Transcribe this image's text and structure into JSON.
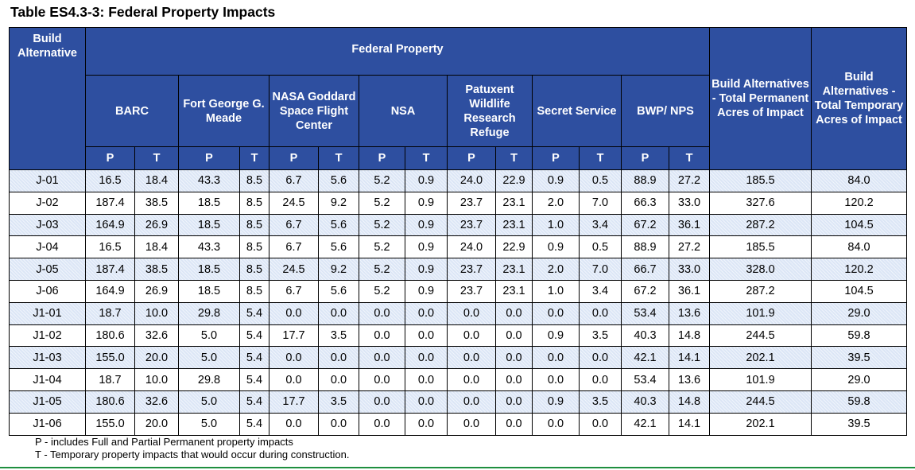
{
  "title": "Table ES4.3-3: Federal Property Impacts",
  "headers": {
    "build_alt": "Build Alternative",
    "federal_property": "Federal Property",
    "properties": [
      "BARC",
      "Fort George G. Meade",
      "NASA Goddard Space Flight Center",
      "NSA",
      "Patuxent Wildlife Research Refuge",
      "Secret Service",
      "BWP/ NPS"
    ],
    "total_perm": "Build Alternatives - Total Permanent Acres of Impact",
    "total_temp": "Build Alternatives - Total Temporary Acres of Impact",
    "p": "P",
    "t": "T"
  },
  "rows": [
    [
      "J-01",
      "16.5",
      "18.4",
      "43.3",
      "8.5",
      "6.7",
      "5.6",
      "5.2",
      "0.9",
      "24.0",
      "22.9",
      "0.9",
      "0.5",
      "88.9",
      "27.2",
      "185.5",
      "84.0"
    ],
    [
      "J-02",
      "187.4",
      "38.5",
      "18.5",
      "8.5",
      "24.5",
      "9.2",
      "5.2",
      "0.9",
      "23.7",
      "23.1",
      "2.0",
      "7.0",
      "66.3",
      "33.0",
      "327.6",
      "120.2"
    ],
    [
      "J-03",
      "164.9",
      "26.9",
      "18.5",
      "8.5",
      "6.7",
      "5.6",
      "5.2",
      "0.9",
      "23.7",
      "23.1",
      "1.0",
      "3.4",
      "67.2",
      "36.1",
      "287.2",
      "104.5"
    ],
    [
      "J-04",
      "16.5",
      "18.4",
      "43.3",
      "8.5",
      "6.7",
      "5.6",
      "5.2",
      "0.9",
      "24.0",
      "22.9",
      "0.9",
      "0.5",
      "88.9",
      "27.2",
      "185.5",
      "84.0"
    ],
    [
      "J-05",
      "187.4",
      "38.5",
      "18.5",
      "8.5",
      "24.5",
      "9.2",
      "5.2",
      "0.9",
      "23.7",
      "23.1",
      "2.0",
      "7.0",
      "66.7",
      "33.0",
      "328.0",
      "120.2"
    ],
    [
      "J-06",
      "164.9",
      "26.9",
      "18.5",
      "8.5",
      "6.7",
      "5.6",
      "5.2",
      "0.9",
      "23.7",
      "23.1",
      "1.0",
      "3.4",
      "67.2",
      "36.1",
      "287.2",
      "104.5"
    ],
    [
      "J1-01",
      "18.7",
      "10.0",
      "29.8",
      "5.4",
      "0.0",
      "0.0",
      "0.0",
      "0.0",
      "0.0",
      "0.0",
      "0.0",
      "0.0",
      "53.4",
      "13.6",
      "101.9",
      "29.0"
    ],
    [
      "J1-02",
      "180.6",
      "32.6",
      "5.0",
      "5.4",
      "17.7",
      "3.5",
      "0.0",
      "0.0",
      "0.0",
      "0.0",
      "0.9",
      "3.5",
      "40.3",
      "14.8",
      "244.5",
      "59.8"
    ],
    [
      "J1-03",
      "155.0",
      "20.0",
      "5.0",
      "5.4",
      "0.0",
      "0.0",
      "0.0",
      "0.0",
      "0.0",
      "0.0",
      "0.0",
      "0.0",
      "42.1",
      "14.1",
      "202.1",
      "39.5"
    ],
    [
      "J1-04",
      "18.7",
      "10.0",
      "29.8",
      "5.4",
      "0.0",
      "0.0",
      "0.0",
      "0.0",
      "0.0",
      "0.0",
      "0.0",
      "0.0",
      "53.4",
      "13.6",
      "101.9",
      "29.0"
    ],
    [
      "J1-05",
      "180.6",
      "32.6",
      "5.0",
      "5.4",
      "17.7",
      "3.5",
      "0.0",
      "0.0",
      "0.0",
      "0.0",
      "0.9",
      "3.5",
      "40.3",
      "14.8",
      "244.5",
      "59.8"
    ],
    [
      "J1-06",
      "155.0",
      "20.0",
      "5.0",
      "5.4",
      "0.0",
      "0.0",
      "0.0",
      "0.0",
      "0.0",
      "0.0",
      "0.0",
      "0.0",
      "42.1",
      "14.1",
      "202.1",
      "39.5"
    ]
  ],
  "notes": {
    "p": "P - includes Full and Partial Permanent property impacts",
    "t": "T - Temporary property impacts that would occur during construction."
  }
}
